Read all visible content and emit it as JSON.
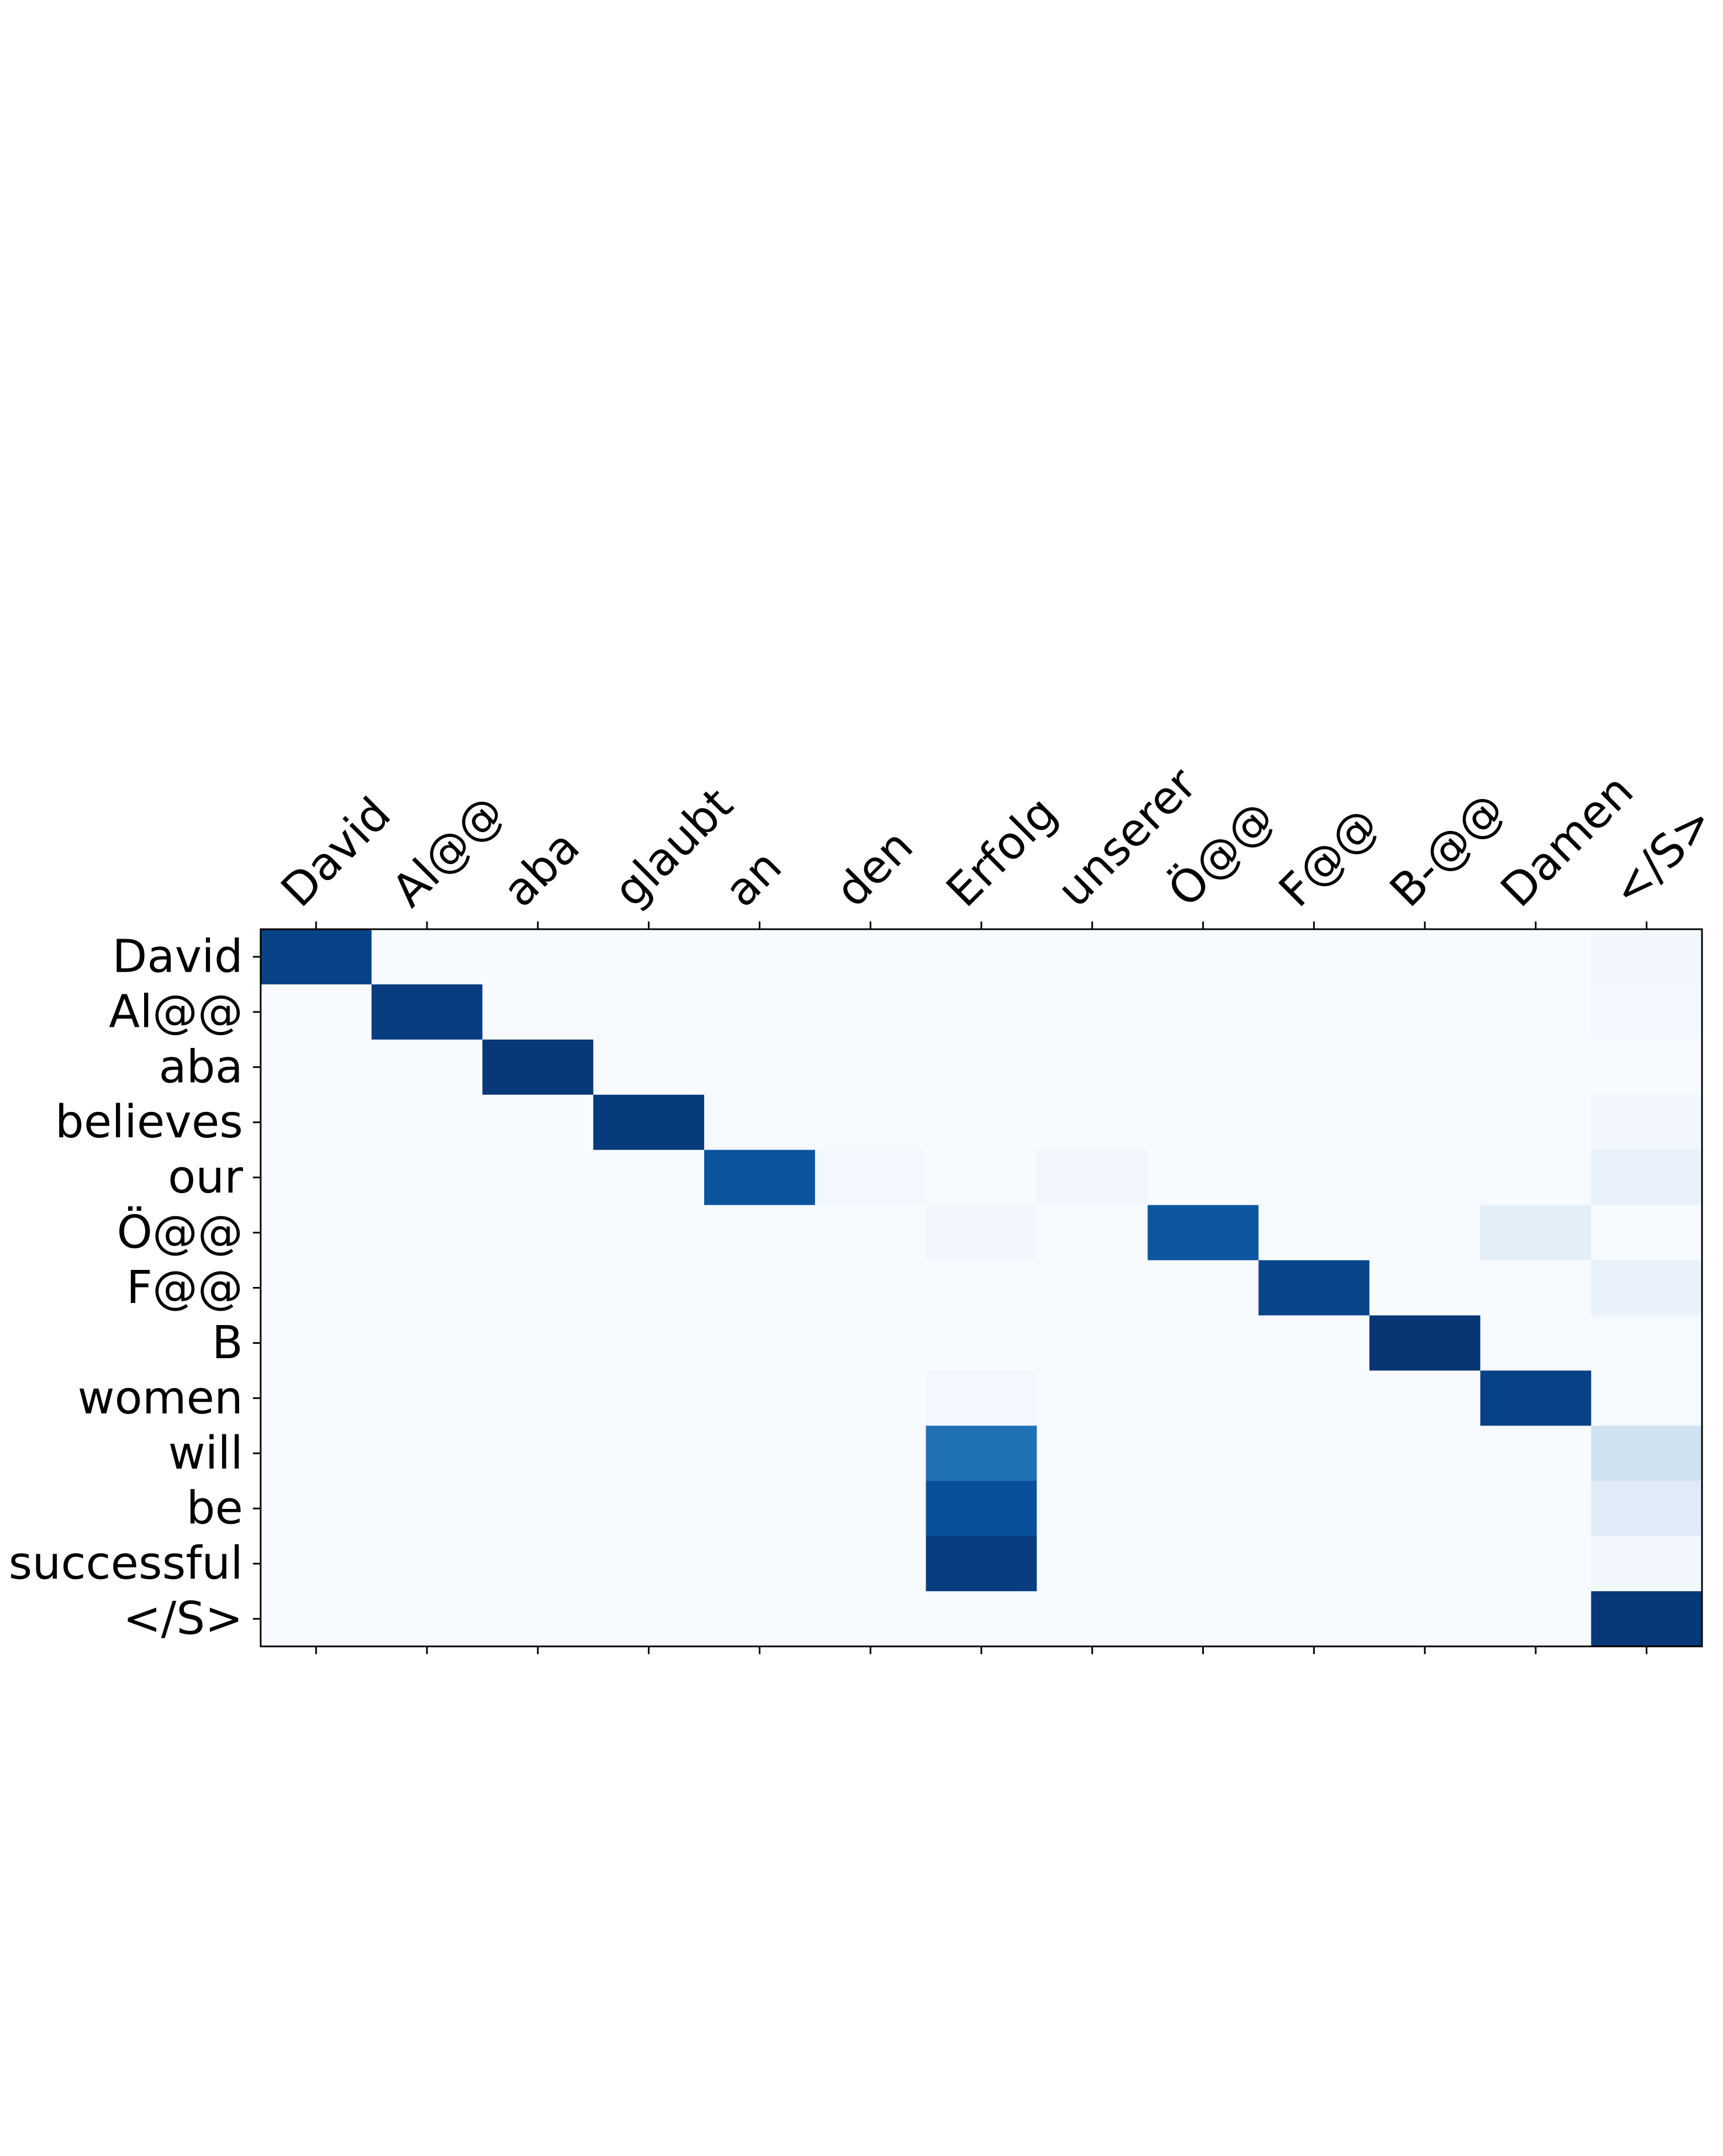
{
  "chart_data": {
    "type": "heatmap",
    "title": "",
    "xlabel": "",
    "ylabel": "",
    "x_ticks_position": "top",
    "colormap": "Blues",
    "value_range": [
      0,
      1
    ],
    "x_labels": [
      "David",
      "Al@@",
      "aba",
      "glaubt",
      "an",
      "den",
      "Erfolg",
      "unserer",
      "Ö@@",
      "F@@",
      "B-@@",
      "Damen",
      "</S>"
    ],
    "y_labels": [
      "David",
      "Al@@",
      "aba",
      "believes",
      "our",
      "Ö@@",
      "F@@",
      "B",
      "women",
      "will",
      "be",
      "successful",
      "</S>"
    ],
    "values": [
      [
        0.93,
        0.0,
        0.0,
        0.0,
        0.0,
        0.0,
        0.0,
        0.0,
        0.0,
        0.0,
        0.0,
        0.0,
        0.03
      ],
      [
        0.0,
        0.95,
        0.0,
        0.01,
        0.0,
        0.0,
        0.0,
        0.0,
        0.0,
        0.0,
        0.0,
        0.0,
        0.02
      ],
      [
        0.0,
        0.0,
        0.97,
        0.0,
        0.0,
        0.0,
        0.0,
        0.0,
        0.0,
        0.0,
        0.0,
        0.0,
        0.0
      ],
      [
        0.0,
        0.0,
        0.0,
        0.96,
        0.01,
        0.0,
        0.0,
        0.0,
        0.0,
        0.0,
        0.0,
        0.0,
        0.03
      ],
      [
        0.0,
        0.0,
        0.0,
        0.0,
        0.86,
        0.02,
        0.0,
        0.03,
        0.0,
        0.0,
        0.0,
        0.0,
        0.07
      ],
      [
        0.0,
        0.0,
        0.0,
        0.0,
        0.0,
        0.0,
        0.03,
        0.0,
        0.85,
        0.0,
        0.0,
        0.1,
        0.0
      ],
      [
        0.0,
        0.0,
        0.0,
        0.0,
        0.0,
        0.0,
        0.0,
        0.0,
        0.0,
        0.92,
        0.0,
        0.0,
        0.07
      ],
      [
        0.0,
        0.0,
        0.0,
        0.0,
        0.0,
        0.0,
        0.0,
        0.0,
        0.0,
        0.0,
        0.98,
        0.0,
        0.01
      ],
      [
        0.0,
        0.0,
        0.0,
        0.0,
        0.0,
        0.0,
        0.02,
        0.0,
        0.0,
        0.0,
        0.0,
        0.93,
        0.01
      ],
      [
        0.0,
        0.0,
        0.0,
        0.0,
        0.0,
        0.0,
        0.75,
        0.0,
        0.0,
        0.0,
        0.0,
        0.0,
        0.2
      ],
      [
        0.0,
        0.0,
        0.0,
        0.0,
        0.0,
        0.0,
        0.88,
        0.0,
        0.0,
        0.0,
        0.0,
        0.0,
        0.12
      ],
      [
        0.0,
        0.0,
        0.0,
        0.0,
        0.0,
        0.0,
        0.95,
        0.0,
        0.0,
        0.0,
        0.0,
        0.0,
        0.03
      ],
      [
        0.0,
        0.0,
        0.0,
        0.0,
        0.0,
        0.0,
        0.0,
        0.0,
        0.0,
        0.0,
        0.0,
        0.0,
        0.97
      ]
    ]
  }
}
